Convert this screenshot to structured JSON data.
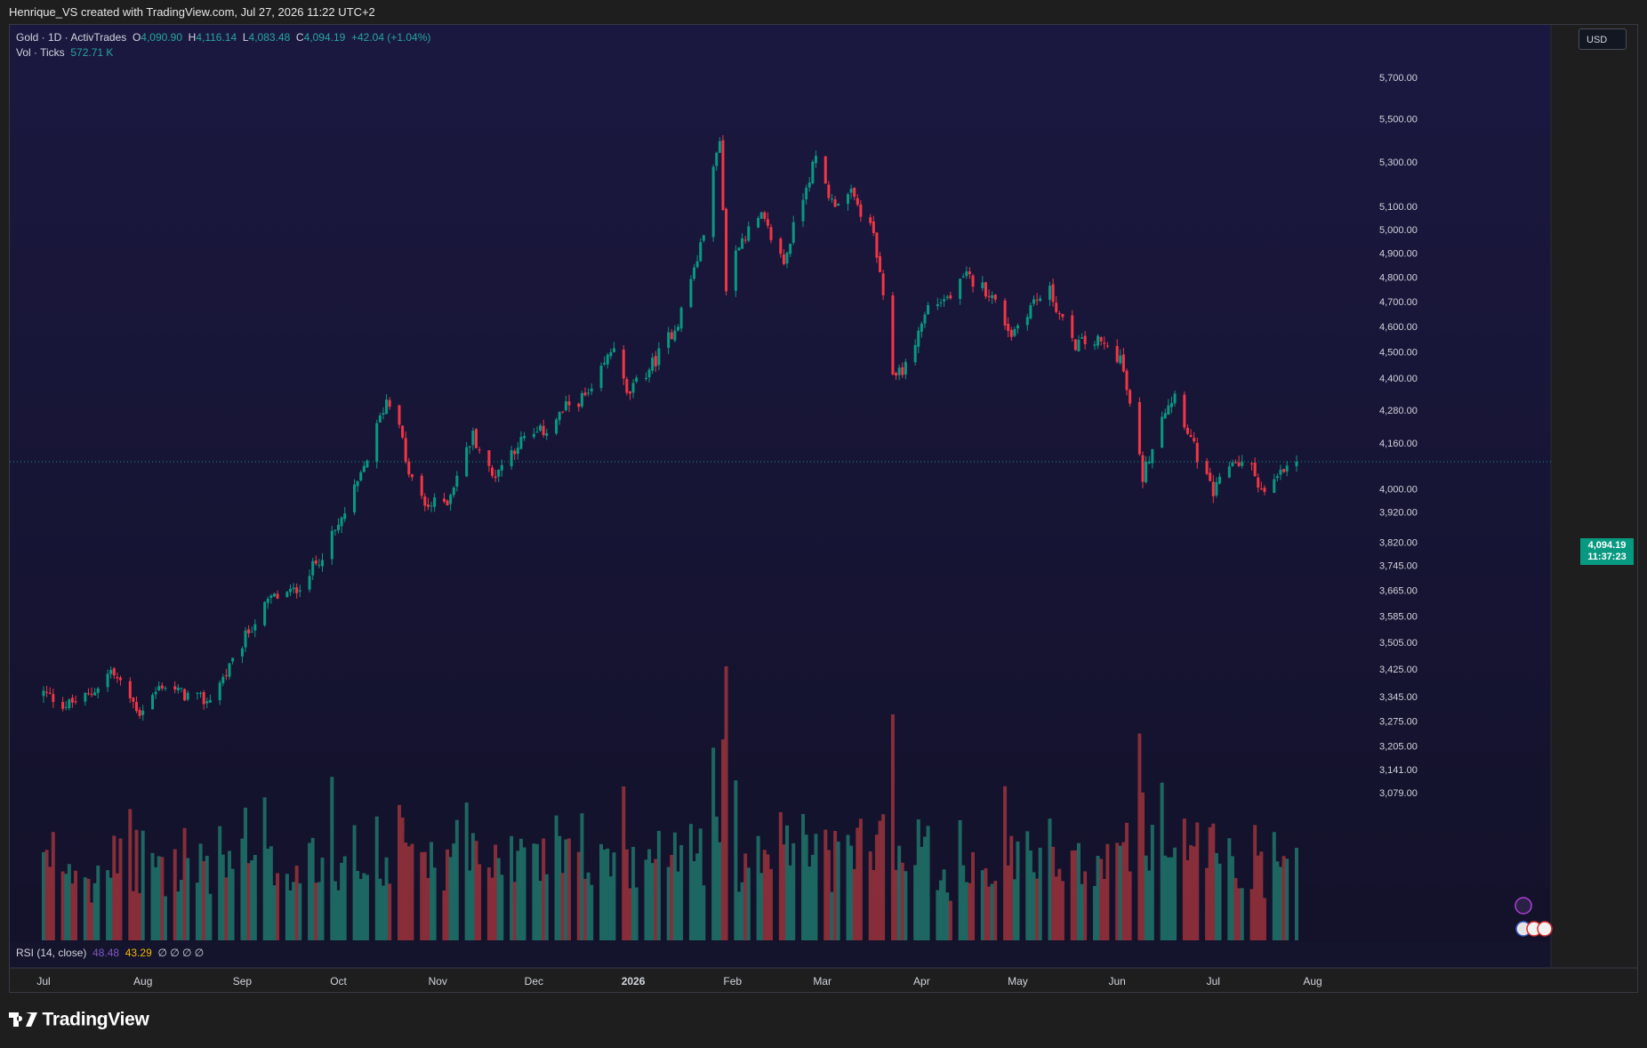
{
  "header": {
    "attribution": "Henrique_VS created with TradingView.com, Jul 27, 2026 11:22 UTC+2"
  },
  "legend": {
    "symbol": "Gold · 1D · ActivTrades",
    "open_label": "O",
    "open": "4,090.90",
    "high_label": "H",
    "high": "4,116.14",
    "low_label": "L",
    "low": "4,083.48",
    "close_label": "C",
    "close": "4,094.19",
    "change": "+42.04 (+1.04%)",
    "vol_label": "Vol · Ticks",
    "vol": "572.71 K"
  },
  "currency": "USD",
  "price_badge": {
    "price": "4,094.19",
    "countdown": "11:37:23"
  },
  "rsi": {
    "label": "RSI (14, close)",
    "v1": "48.48",
    "v2": "43.29",
    "rest": "∅ ∅ ∅ ∅"
  },
  "footer": {
    "brand": "TradingView"
  },
  "colors": {
    "up": "#089981",
    "down": "#f23645",
    "bg_top": "#19163a",
    "bg_bottom": "#131224"
  },
  "chart_data": {
    "type": "candlestick",
    "title": "Gold · 1D · ActivTrades",
    "y_scale": "log",
    "y_ticks": [
      "5,700.00",
      "5,500.00",
      "5,300.00",
      "5,100.00",
      "5,000.00",
      "4,900.00",
      "4,800.00",
      "4,700.00",
      "4,600.00",
      "4,500.00",
      "4,400.00",
      "4,280.00",
      "4,160.00",
      "4,000.00",
      "3,920.00",
      "3,820.00",
      "3,745.00",
      "3,665.00",
      "3,585.00",
      "3,505.00",
      "3,425.00",
      "3,345.00",
      "3,275.00",
      "3,205.00",
      "3,141.00",
      "3,079.00"
    ],
    "x_ticks": [
      "Jul",
      "Aug",
      "Sep",
      "Oct",
      "Nov",
      "Dec",
      "2026",
      "Feb",
      "Mar",
      "Apr",
      "May",
      "Jun",
      "Jul",
      "Aug"
    ],
    "close_anchors": [
      [
        "2025-07-01",
        3355
      ],
      [
        "2025-07-08",
        3320
      ],
      [
        "2025-07-15",
        3345
      ],
      [
        "2025-07-22",
        3420
      ],
      [
        "2025-07-31",
        3300
      ],
      [
        "2025-08-07",
        3380
      ],
      [
        "2025-08-14",
        3350
      ],
      [
        "2025-08-21",
        3330
      ],
      [
        "2025-08-29",
        3440
      ],
      [
        "2025-09-03",
        3540
      ],
      [
        "2025-09-10",
        3640
      ],
      [
        "2025-09-17",
        3660
      ],
      [
        "2025-09-24",
        3750
      ],
      [
        "2025-10-01",
        3870
      ],
      [
        "2025-10-08",
        4040
      ],
      [
        "2025-10-16",
        4320
      ],
      [
        "2025-10-20",
        4250
      ],
      [
        "2025-10-22",
        4080
      ],
      [
        "2025-10-28",
        3940
      ],
      [
        "2025-11-04",
        3960
      ],
      [
        "2025-11-12",
        4190
      ],
      [
        "2025-11-18",
        4040
      ],
      [
        "2025-11-26",
        4160
      ],
      [
        "2025-12-05",
        4210
      ],
      [
        "2025-12-12",
        4300
      ],
      [
        "2025-12-19",
        4340
      ],
      [
        "2025-12-26",
        4530
      ],
      [
        "2025-12-30",
        4330
      ],
      [
        "2026-01-08",
        4470
      ],
      [
        "2026-01-15",
        4620
      ],
      [
        "2026-01-22",
        4920
      ],
      [
        "2026-01-28",
        5420
      ],
      [
        "2026-01-30",
        4750
      ],
      [
        "2026-02-03",
        4950
      ],
      [
        "2026-02-10",
        5050
      ],
      [
        "2026-02-17",
        4860
      ],
      [
        "2026-02-24",
        5200
      ],
      [
        "2026-02-27",
        5310
      ],
      [
        "2026-03-04",
        5120
      ],
      [
        "2026-03-10",
        5150
      ],
      [
        "2026-03-17",
        4980
      ],
      [
        "2026-03-23",
        4420
      ],
      [
        "2026-03-27",
        4440
      ],
      [
        "2026-04-03",
        4680
      ],
      [
        "2026-04-10",
        4720
      ],
      [
        "2026-04-15",
        4800
      ],
      [
        "2026-04-22",
        4740
      ],
      [
        "2026-04-29",
        4570
      ],
      [
        "2026-05-06",
        4700
      ],
      [
        "2026-05-11",
        4740
      ],
      [
        "2026-05-18",
        4530
      ],
      [
        "2026-05-26",
        4540
      ],
      [
        "2026-06-02",
        4480
      ],
      [
        "2026-06-09",
        4040
      ],
      [
        "2026-06-15",
        4270
      ],
      [
        "2026-06-19",
        4340
      ],
      [
        "2026-06-26",
        4110
      ],
      [
        "2026-07-01",
        3980
      ],
      [
        "2026-07-07",
        4100
      ],
      [
        "2026-07-13",
        4070
      ],
      [
        "2026-07-17",
        3980
      ],
      [
        "2026-07-22",
        4050
      ],
      [
        "2026-07-27",
        4094
      ]
    ]
  }
}
